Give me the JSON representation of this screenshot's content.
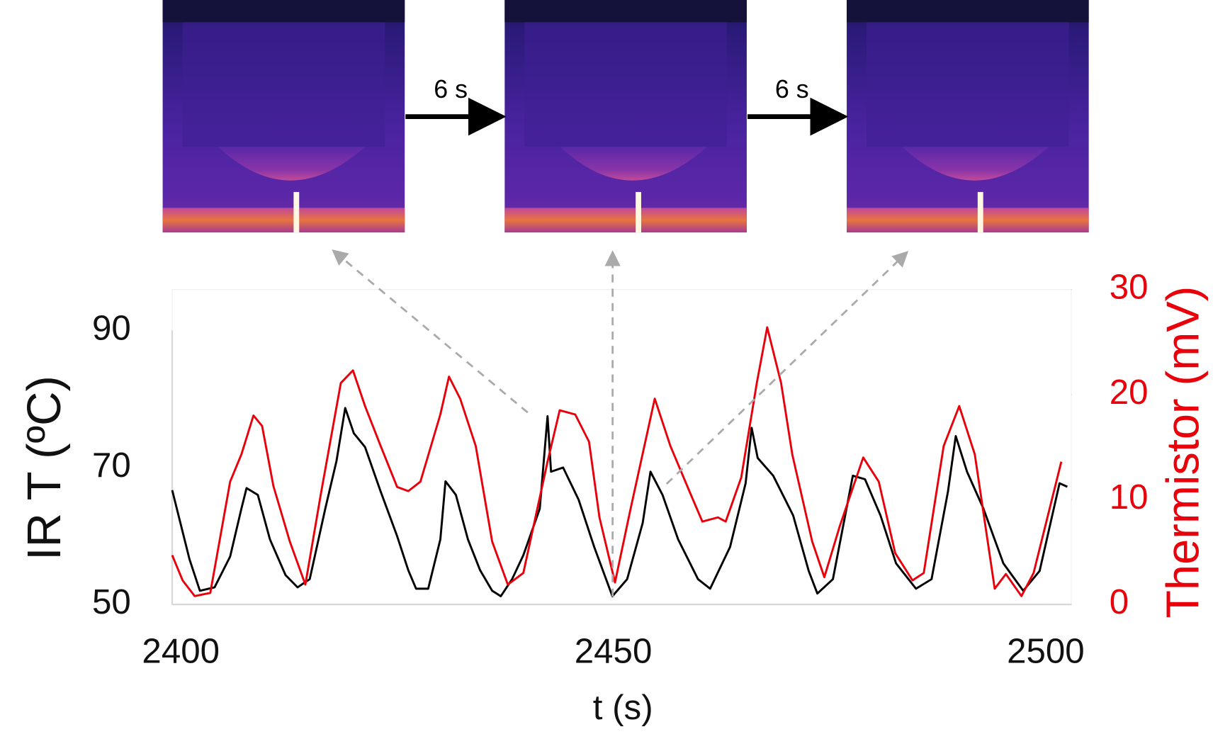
{
  "chart_data": {
    "type": "line",
    "annotations": [
      "6 s",
      "6 s"
    ],
    "xlabel": "t (s)",
    "ylabel": "IR T (ºC)",
    "y2label": "Thermistor  (mV)",
    "xlim": [
      2399,
      2502.5
    ],
    "xticks": [
      2400,
      2450,
      2500
    ],
    "ylim": [
      50,
      96
    ],
    "yticks": [
      50,
      70,
      90
    ],
    "y2lim": [
      0,
      30
    ],
    "y2ticks": [
      0,
      10,
      20,
      30
    ],
    "y2color": "#e8000b",
    "grid": false,
    "series": [
      {
        "color": "#000000",
        "axis": "y",
        "x": [
          2399,
          2401,
          2402.2,
          2403.9,
          2405.7,
          2407,
          2407.6,
          2408.9,
          2410.3,
          2412.1,
          2413.5,
          2414.9,
          2416.7,
          2418,
          2419,
          2420,
          2421.3,
          2423.1,
          2425,
          2426.3,
          2427.2,
          2428.6,
          2430,
          2430.6,
          2431.8,
          2433.2,
          2434.6,
          2436,
          2437,
          2438.3,
          2439.6,
          2441.5,
          2442.4,
          2442.8,
          2444.2,
          2446,
          2447.8,
          2449.9,
          2451.6,
          2453.4,
          2454.3,
          2455.7,
          2457.5,
          2459.8,
          2461.2,
          2463.5,
          2465.3,
          2466,
          2466.7,
          2468.5,
          2470.8,
          2472.6,
          2473.6,
          2475.4,
          2477.7,
          2479.1,
          2480.9,
          2482.7,
          2485,
          2486.8,
          2488.7,
          2489.6,
          2490.9,
          2492.8,
          2495.1,
          2497.4,
          2499.3,
          2501.6,
          2502.5
        ],
        "values": [
          66.7,
          56.6,
          52,
          52.5,
          57,
          64,
          67,
          66,
          59.5,
          54.3,
          52.5,
          53.7,
          64,
          71,
          78.7,
          75,
          73,
          66.5,
          60,
          55,
          52.3,
          52.3,
          59.5,
          68,
          66,
          59.5,
          55,
          52,
          51.2,
          53.7,
          57.2,
          64,
          77.5,
          69.4,
          70,
          65.3,
          58.4,
          51.2,
          53.7,
          61.9,
          69.4,
          66,
          59.5,
          53.7,
          52.3,
          58.4,
          67.7,
          75.8,
          71.4,
          68.8,
          63,
          54.9,
          51.6,
          53.7,
          68.8,
          68.3,
          63,
          56,
          52.3,
          53.7,
          66.5,
          74.6,
          69.4,
          64,
          56,
          52,
          54.9,
          67.7,
          67.2
        ]
      },
      {
        "color": "#e8000b",
        "axis": "y2",
        "x": [
          2399,
          2400.2,
          2401.6,
          2403.4,
          2405.7,
          2407,
          2408.4,
          2409.4,
          2410.7,
          2412.6,
          2414.4,
          2416.2,
          2418.5,
          2419.9,
          2421.3,
          2423.1,
          2425,
          2426.3,
          2427.7,
          2430,
          2431,
          2432.3,
          2434.1,
          2436,
          2437.8,
          2439.6,
          2442.4,
          2443.8,
          2445.6,
          2447.2,
          2448.4,
          2450.2,
          2452,
          2454.8,
          2456.6,
          2458.9,
          2460.3,
          2462.1,
          2463,
          2464.8,
          2466.6,
          2467.8,
          2469.4,
          2470.7,
          2473,
          2474.4,
          2476.2,
          2478.9,
          2480.7,
          2482.6,
          2484.6,
          2485.9,
          2488.2,
          2490,
          2491.8,
          2494.1,
          2495.4,
          2497.2,
          2498.6,
          2501.8
        ],
        "values": [
          4.7,
          2.3,
          0.8,
          1.1,
          11.7,
          14.3,
          18,
          17,
          11.3,
          6,
          1.9,
          10.6,
          21.1,
          22.3,
          18.9,
          15.1,
          11.2,
          10.8,
          11.7,
          18.1,
          21.7,
          19.6,
          15.1,
          6,
          1.9,
          3,
          13.6,
          18.5,
          18.1,
          15.5,
          8.3,
          2.1,
          9.1,
          19.6,
          15.1,
          10.6,
          7.9,
          8.3,
          7.9,
          12.1,
          21.1,
          26.4,
          21.1,
          14.3,
          6,
          2.6,
          7.5,
          14,
          11.7,
          4.9,
          2.3,
          3,
          15.1,
          18.9,
          14.3,
          1.5,
          2.9,
          0.8,
          3,
          13.6
        ]
      }
    ]
  }
}
